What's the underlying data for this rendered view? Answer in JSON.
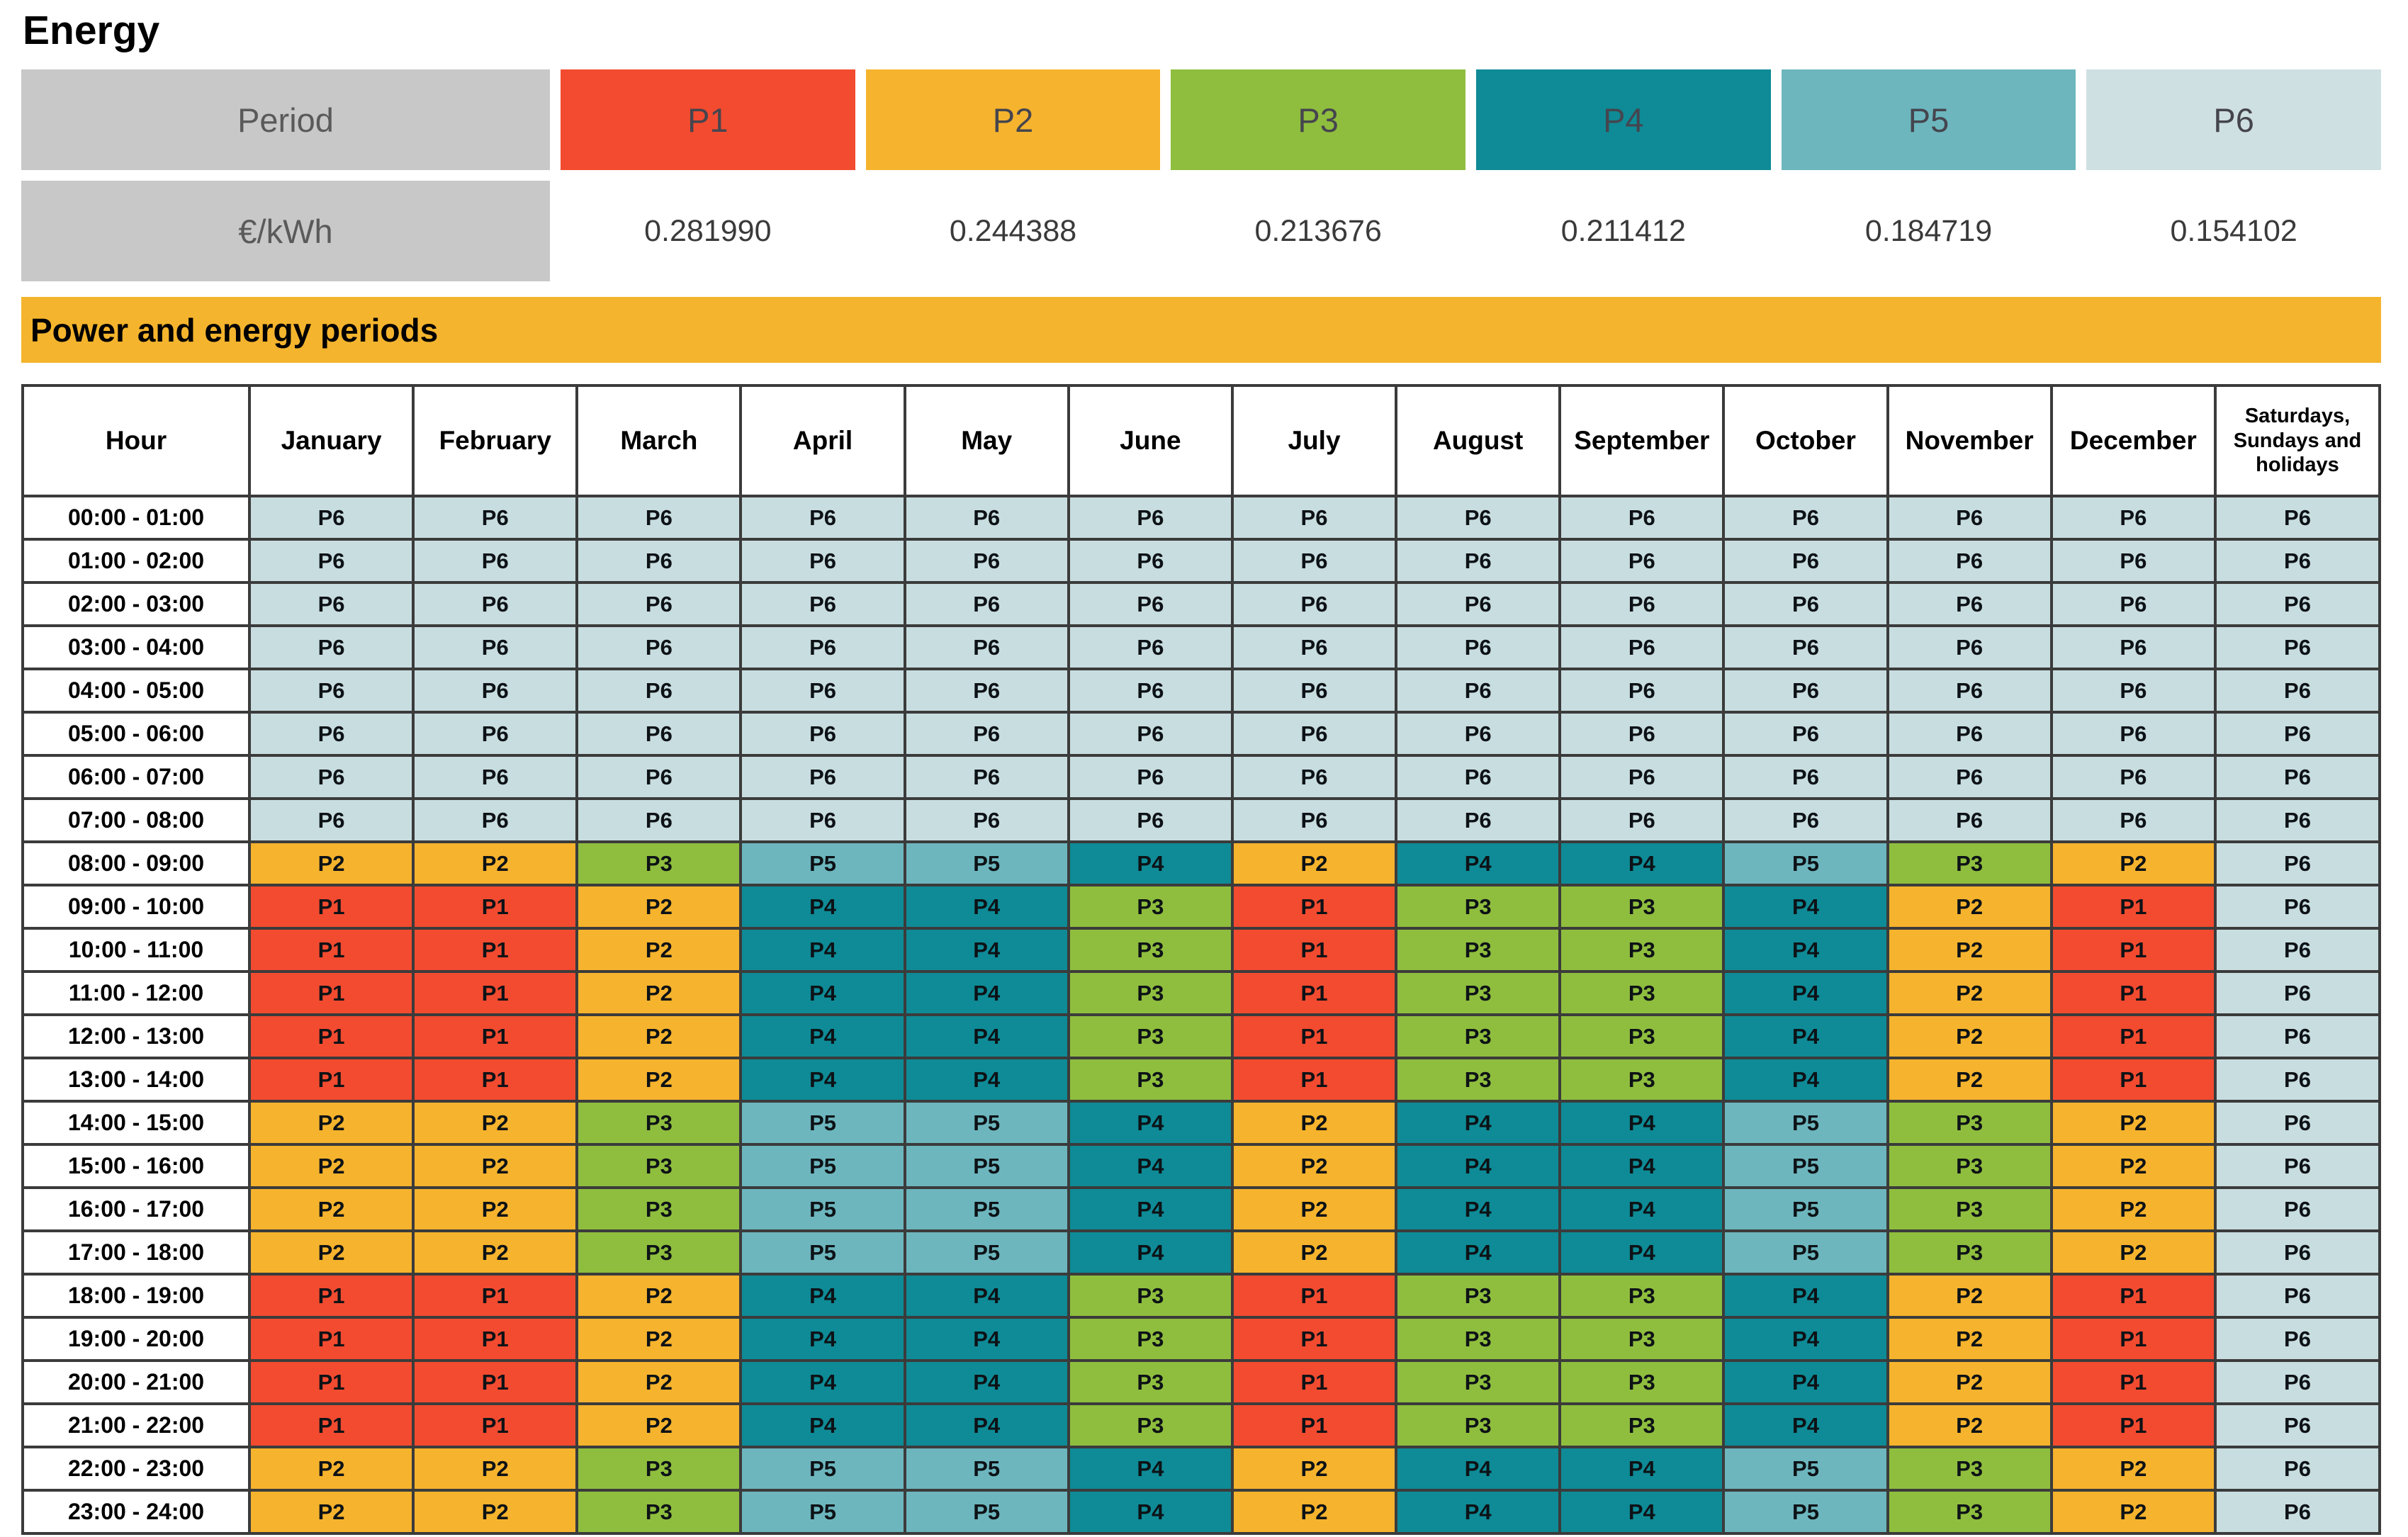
{
  "title": "Energy",
  "legend": {
    "period_label": "Period",
    "unit_label": "€/kWh",
    "periods": [
      {
        "id": "P1",
        "price": "0.281990",
        "color": "#F24B30"
      },
      {
        "id": "P2",
        "price": "0.244388",
        "color": "#F6B32D"
      },
      {
        "id": "P3",
        "price": "0.213676",
        "color": "#8FBE3E"
      },
      {
        "id": "P4",
        "price": "0.211412",
        "color": "#0E8B96"
      },
      {
        "id": "P5",
        "price": "0.184719",
        "color": "#6DB6BE"
      },
      {
        "id": "P6",
        "price": "0.154102",
        "color": "#CFE0E3"
      }
    ]
  },
  "banner": {
    "label": "Power and energy periods",
    "color": "#F4B42D"
  },
  "schedule": {
    "columns": [
      "Hour",
      "January",
      "February",
      "March",
      "April",
      "May",
      "June",
      "July",
      "August",
      "September",
      "October",
      "November",
      "December",
      "Saturdays, Sundays and holidays"
    ],
    "cell_colors": {
      "P1": "#F24B30",
      "P2": "#F6B32D",
      "P3": "#8FBE3E",
      "P4": "#0E8B96",
      "P5": "#6DB6BE",
      "P6": "#C8DDE0"
    },
    "rows": [
      {
        "hour": "00:00 - 01:00",
        "cells": [
          "P6",
          "P6",
          "P6",
          "P6",
          "P6",
          "P6",
          "P6",
          "P6",
          "P6",
          "P6",
          "P6",
          "P6",
          "P6"
        ]
      },
      {
        "hour": "01:00 - 02:00",
        "cells": [
          "P6",
          "P6",
          "P6",
          "P6",
          "P6",
          "P6",
          "P6",
          "P6",
          "P6",
          "P6",
          "P6",
          "P6",
          "P6"
        ]
      },
      {
        "hour": "02:00 - 03:00",
        "cells": [
          "P6",
          "P6",
          "P6",
          "P6",
          "P6",
          "P6",
          "P6",
          "P6",
          "P6",
          "P6",
          "P6",
          "P6",
          "P6"
        ]
      },
      {
        "hour": "03:00 - 04:00",
        "cells": [
          "P6",
          "P6",
          "P6",
          "P6",
          "P6",
          "P6",
          "P6",
          "P6",
          "P6",
          "P6",
          "P6",
          "P6",
          "P6"
        ]
      },
      {
        "hour": "04:00 - 05:00",
        "cells": [
          "P6",
          "P6",
          "P6",
          "P6",
          "P6",
          "P6",
          "P6",
          "P6",
          "P6",
          "P6",
          "P6",
          "P6",
          "P6"
        ]
      },
      {
        "hour": "05:00 - 06:00",
        "cells": [
          "P6",
          "P6",
          "P6",
          "P6",
          "P6",
          "P6",
          "P6",
          "P6",
          "P6",
          "P6",
          "P6",
          "P6",
          "P6"
        ]
      },
      {
        "hour": "06:00 - 07:00",
        "cells": [
          "P6",
          "P6",
          "P6",
          "P6",
          "P6",
          "P6",
          "P6",
          "P6",
          "P6",
          "P6",
          "P6",
          "P6",
          "P6"
        ]
      },
      {
        "hour": "07:00 - 08:00",
        "cells": [
          "P6",
          "P6",
          "P6",
          "P6",
          "P6",
          "P6",
          "P6",
          "P6",
          "P6",
          "P6",
          "P6",
          "P6",
          "P6"
        ]
      },
      {
        "hour": "08:00 - 09:00",
        "cells": [
          "P2",
          "P2",
          "P3",
          "P5",
          "P5",
          "P4",
          "P2",
          "P4",
          "P4",
          "P5",
          "P3",
          "P2",
          "P6"
        ]
      },
      {
        "hour": "09:00 - 10:00",
        "cells": [
          "P1",
          "P1",
          "P2",
          "P4",
          "P4",
          "P3",
          "P1",
          "P3",
          "P3",
          "P4",
          "P2",
          "P1",
          "P6"
        ]
      },
      {
        "hour": "10:00 - 11:00",
        "cells": [
          "P1",
          "P1",
          "P2",
          "P4",
          "P4",
          "P3",
          "P1",
          "P3",
          "P3",
          "P4",
          "P2",
          "P1",
          "P6"
        ]
      },
      {
        "hour": "11:00 - 12:00",
        "cells": [
          "P1",
          "P1",
          "P2",
          "P4",
          "P4",
          "P3",
          "P1",
          "P3",
          "P3",
          "P4",
          "P2",
          "P1",
          "P6"
        ]
      },
      {
        "hour": "12:00 - 13:00",
        "cells": [
          "P1",
          "P1",
          "P2",
          "P4",
          "P4",
          "P3",
          "P1",
          "P3",
          "P3",
          "P4",
          "P2",
          "P1",
          "P6"
        ]
      },
      {
        "hour": "13:00 - 14:00",
        "cells": [
          "P1",
          "P1",
          "P2",
          "P4",
          "P4",
          "P3",
          "P1",
          "P3",
          "P3",
          "P4",
          "P2",
          "P1",
          "P6"
        ]
      },
      {
        "hour": "14:00 - 15:00",
        "cells": [
          "P2",
          "P2",
          "P3",
          "P5",
          "P5",
          "P4",
          "P2",
          "P4",
          "P4",
          "P5",
          "P3",
          "P2",
          "P6"
        ]
      },
      {
        "hour": "15:00 - 16:00",
        "cells": [
          "P2",
          "P2",
          "P3",
          "P5",
          "P5",
          "P4",
          "P2",
          "P4",
          "P4",
          "P5",
          "P3",
          "P2",
          "P6"
        ]
      },
      {
        "hour": "16:00 - 17:00",
        "cells": [
          "P2",
          "P2",
          "P3",
          "P5",
          "P5",
          "P4",
          "P2",
          "P4",
          "P4",
          "P5",
          "P3",
          "P2",
          "P6"
        ]
      },
      {
        "hour": "17:00 - 18:00",
        "cells": [
          "P2",
          "P2",
          "P3",
          "P5",
          "P5",
          "P4",
          "P2",
          "P4",
          "P4",
          "P5",
          "P3",
          "P2",
          "P6"
        ]
      },
      {
        "hour": "18:00 - 19:00",
        "cells": [
          "P1",
          "P1",
          "P2",
          "P4",
          "P4",
          "P3",
          "P1",
          "P3",
          "P3",
          "P4",
          "P2",
          "P1",
          "P6"
        ]
      },
      {
        "hour": "19:00 - 20:00",
        "cells": [
          "P1",
          "P1",
          "P2",
          "P4",
          "P4",
          "P3",
          "P1",
          "P3",
          "P3",
          "P4",
          "P2",
          "P1",
          "P6"
        ]
      },
      {
        "hour": "20:00 - 21:00",
        "cells": [
          "P1",
          "P1",
          "P2",
          "P4",
          "P4",
          "P3",
          "P1",
          "P3",
          "P3",
          "P4",
          "P2",
          "P1",
          "P6"
        ]
      },
      {
        "hour": "21:00 - 22:00",
        "cells": [
          "P1",
          "P1",
          "P2",
          "P4",
          "P4",
          "P3",
          "P1",
          "P3",
          "P3",
          "P4",
          "P2",
          "P1",
          "P6"
        ]
      },
      {
        "hour": "22:00 - 23:00",
        "cells": [
          "P2",
          "P2",
          "P3",
          "P5",
          "P5",
          "P4",
          "P2",
          "P4",
          "P4",
          "P5",
          "P3",
          "P2",
          "P6"
        ]
      },
      {
        "hour": "23:00 - 24:00",
        "cells": [
          "P2",
          "P2",
          "P3",
          "P5",
          "P5",
          "P4",
          "P2",
          "P4",
          "P4",
          "P5",
          "P3",
          "P2",
          "P6"
        ]
      }
    ]
  }
}
